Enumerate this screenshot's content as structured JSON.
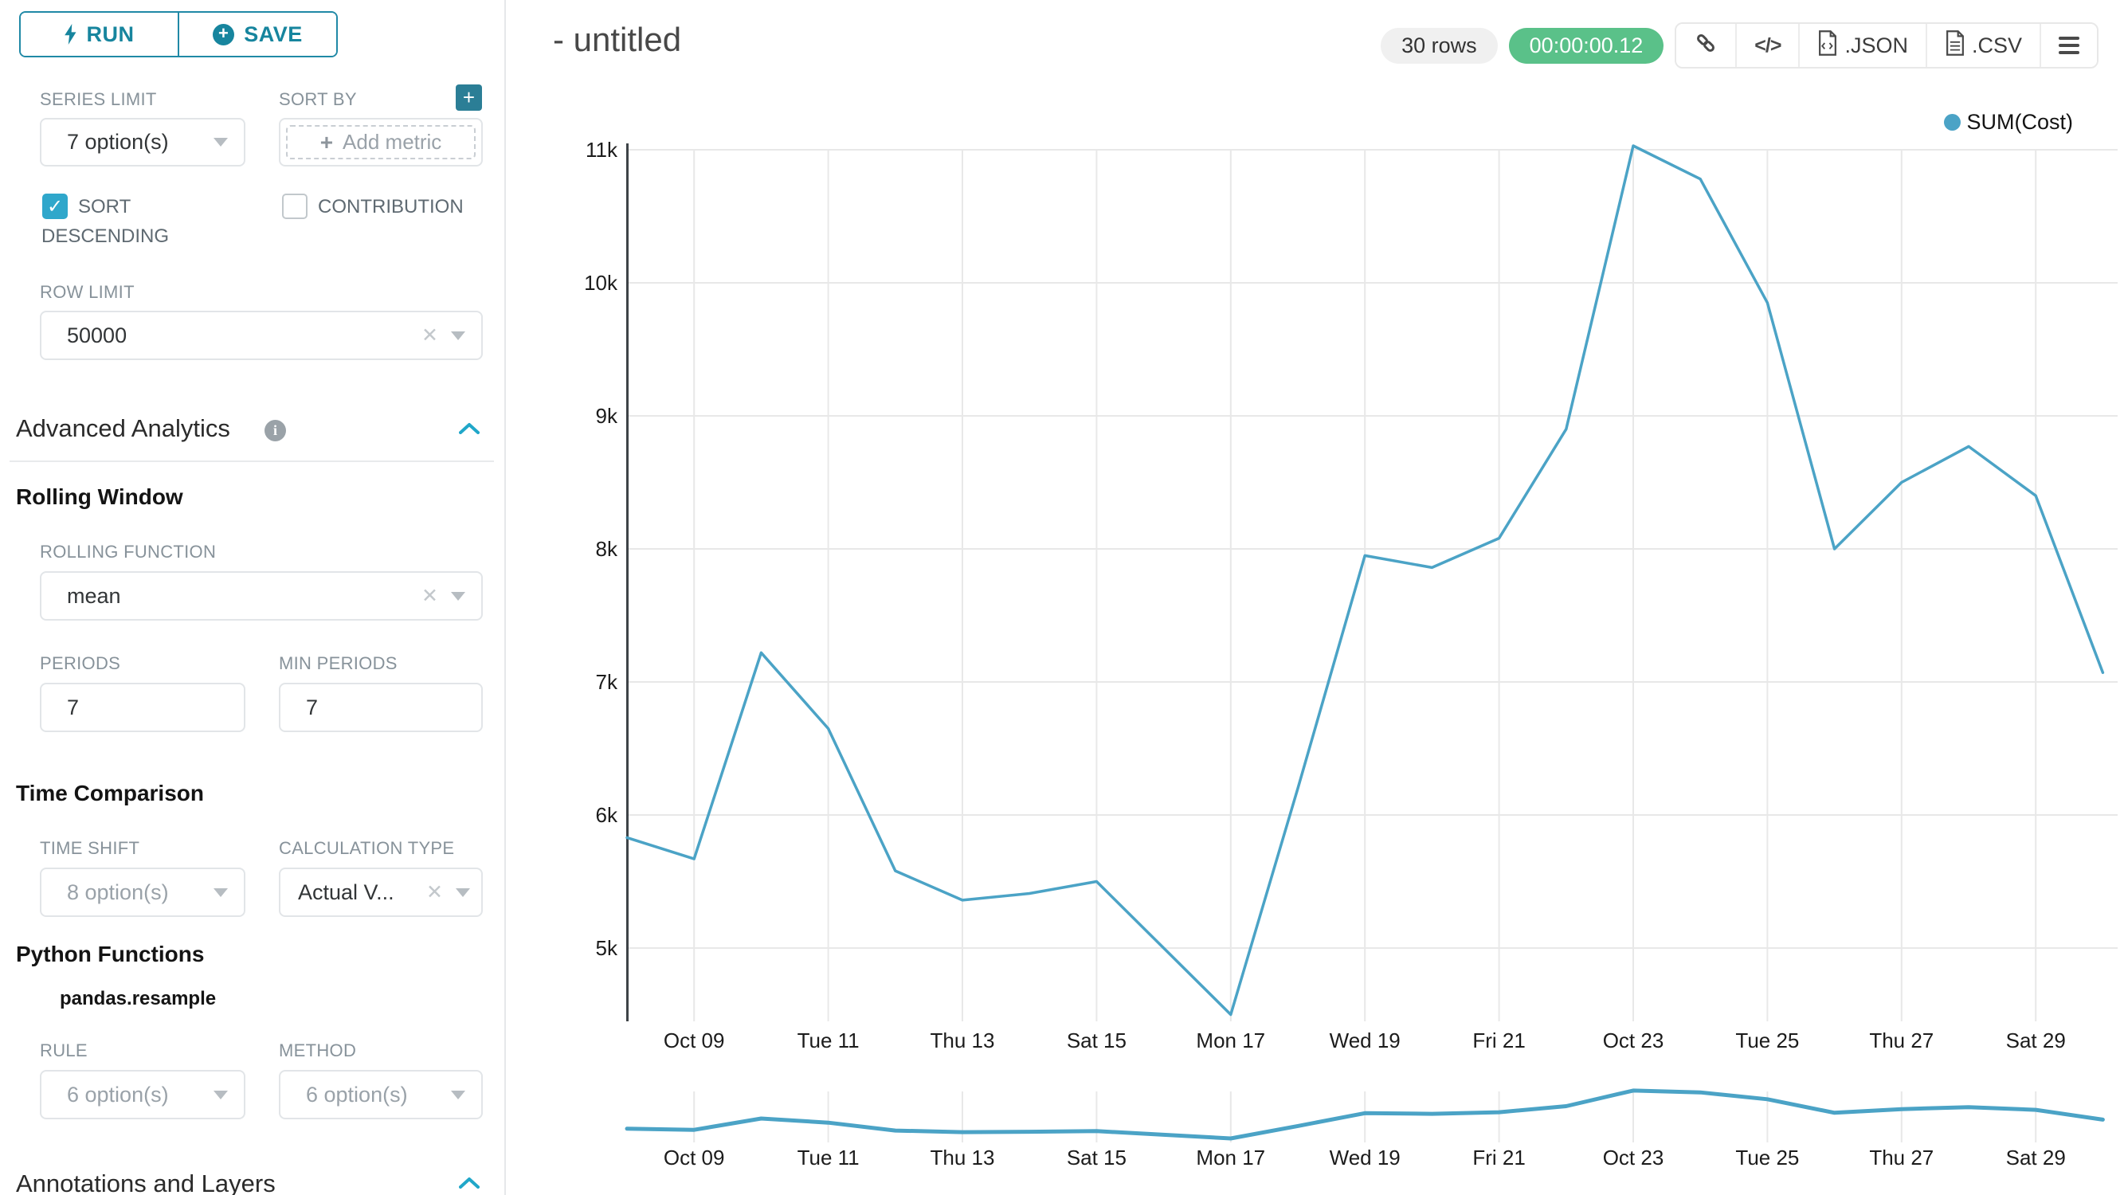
{
  "colors": {
    "accent": "#20a7c9",
    "accent_dark": "#17859e",
    "success_badge": "#5ac189",
    "series": "#4ba3c6"
  },
  "sidebar": {
    "run_label": "RUN",
    "save_label": "SAVE",
    "series_limit": {
      "label": "SERIES LIMIT",
      "value": "7 option(s)"
    },
    "sort_by": {
      "label": "SORT BY",
      "placeholder": "Add metric"
    },
    "sort_descending": {
      "label_line1": "SORT",
      "label_line2": "DESCENDING",
      "checked": true
    },
    "contribution": {
      "label": "CONTRIBUTION",
      "checked": false
    },
    "row_limit": {
      "label": "ROW LIMIT",
      "value": "50000"
    },
    "advanced_analytics": {
      "title": "Advanced Analytics"
    },
    "rolling_window": {
      "title": "Rolling Window",
      "rolling_function": {
        "label": "ROLLING FUNCTION",
        "value": "mean"
      },
      "periods": {
        "label": "PERIODS",
        "value": "7"
      },
      "min_periods": {
        "label": "MIN PERIODS",
        "value": "7"
      }
    },
    "time_comparison": {
      "title": "Time Comparison",
      "time_shift": {
        "label": "TIME SHIFT",
        "value": "8 option(s)"
      },
      "calculation_type": {
        "label": "CALCULATION TYPE",
        "value": "Actual V..."
      }
    },
    "python_functions": {
      "title": "Python Functions",
      "subtitle": "pandas.resample",
      "rule": {
        "label": "RULE",
        "value": "6 option(s)"
      },
      "method": {
        "label": "METHOD",
        "value": "6 option(s)"
      }
    },
    "annotations": {
      "title": "Annotations and Layers"
    }
  },
  "header": {
    "title": "- untitled",
    "rows_badge": "30 rows",
    "duration_badge": "00:00:00.12",
    "toolbar": {
      "code_label": "</>",
      "json_label": ".JSON",
      "csv_label": ".CSV"
    }
  },
  "chart_data": {
    "type": "line",
    "title": "- untitled",
    "legend": "SUM(Cost)",
    "legend_position": "top-right",
    "series_color": "#4ba3c6",
    "grid": true,
    "x": [
      "Oct 08",
      "Oct 09",
      "Oct 10",
      "Oct 11",
      "Oct 12",
      "Oct 13",
      "Oct 14",
      "Oct 15",
      "Oct 16",
      "Oct 17",
      "Oct 18",
      "Oct 19",
      "Oct 20",
      "Oct 21",
      "Oct 22",
      "Oct 23",
      "Oct 24",
      "Oct 25",
      "Oct 26",
      "Oct 27",
      "Oct 28",
      "Oct 29",
      "Oct 30"
    ],
    "series": [
      {
        "name": "SUM(Cost)",
        "values": [
          5830,
          5670,
          7220,
          6650,
          5580,
          5360,
          5410,
          5500,
          5000,
          4500,
          6200,
          7950,
          7860,
          8080,
          8900,
          11030,
          10780,
          9850,
          8000,
          8500,
          8770,
          8400,
          7070
        ]
      }
    ],
    "x_ticks": [
      {
        "label": "Oct 09",
        "index": 1
      },
      {
        "label": "Tue 11",
        "index": 3
      },
      {
        "label": "Thu 13",
        "index": 5
      },
      {
        "label": "Sat 15",
        "index": 7
      },
      {
        "label": "Mon 17",
        "index": 9
      },
      {
        "label": "Wed 19",
        "index": 11
      },
      {
        "label": "Fri 21",
        "index": 13
      },
      {
        "label": "Oct 23",
        "index": 15
      },
      {
        "label": "Tue 25",
        "index": 17
      },
      {
        "label": "Thu 27",
        "index": 19
      },
      {
        "label": "Sat 29",
        "index": 21
      }
    ],
    "y_ticks": [
      {
        "label": "11k",
        "value": 11000
      },
      {
        "label": "10k",
        "value": 10000
      },
      {
        "label": "9k",
        "value": 9000
      },
      {
        "label": "8k",
        "value": 8000
      },
      {
        "label": "7k",
        "value": 7000
      },
      {
        "label": "6k",
        "value": 6000
      },
      {
        "label": "5k",
        "value": 5000
      }
    ],
    "ylim": [
      4400,
      11100
    ],
    "xlabel": "",
    "ylabel": "",
    "mini_chart": true
  }
}
